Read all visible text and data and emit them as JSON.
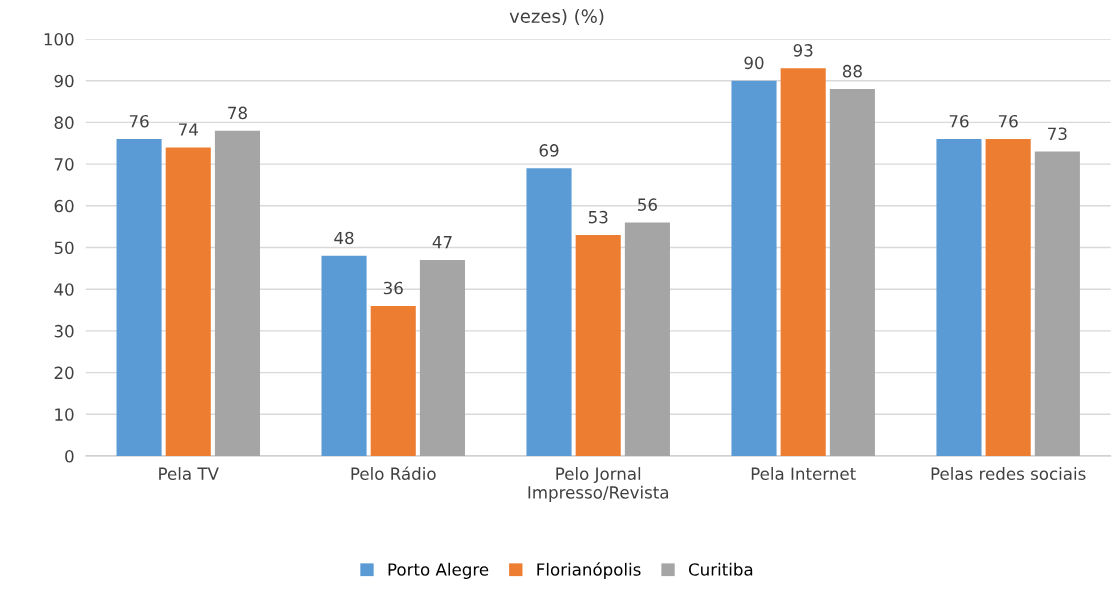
{
  "chart_data": {
    "type": "bar",
    "title": "vezes) (%)",
    "categories": [
      "Pela TV",
      "Pelo Rádio",
      "Pelo Jornal\nImpresso/Revista",
      "Pela Internet",
      "Pelas redes sociais"
    ],
    "series": [
      {
        "name": "Porto Alegre",
        "color": "#5b9bd5",
        "values": [
          76,
          48,
          69,
          90,
          76
        ]
      },
      {
        "name": "Florianópolis",
        "color": "#ed7d31",
        "values": [
          74,
          36,
          53,
          93,
          76
        ]
      },
      {
        "name": "Curitiba",
        "color": "#a5a5a5",
        "values": [
          78,
          47,
          56,
          88,
          73
        ]
      }
    ],
    "ylim": [
      0,
      100
    ],
    "yticks": [
      0,
      10,
      20,
      30,
      40,
      50,
      60,
      70,
      80,
      90,
      100
    ],
    "grid": "y",
    "legend": "bottom",
    "data_labels": true
  }
}
